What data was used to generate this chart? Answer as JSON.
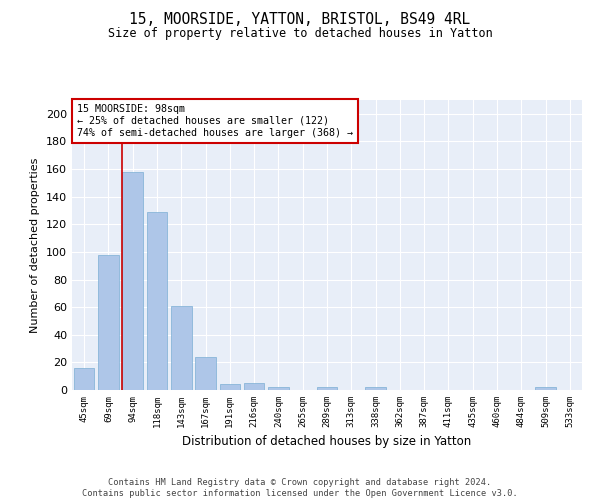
{
  "title1": "15, MOORSIDE, YATTON, BRISTOL, BS49 4RL",
  "title2": "Size of property relative to detached houses in Yatton",
  "xlabel": "Distribution of detached houses by size in Yatton",
  "ylabel": "Number of detached properties",
  "categories": [
    "45sqm",
    "69sqm",
    "94sqm",
    "118sqm",
    "143sqm",
    "167sqm",
    "191sqm",
    "216sqm",
    "240sqm",
    "265sqm",
    "289sqm",
    "313sqm",
    "338sqm",
    "362sqm",
    "387sqm",
    "411sqm",
    "435sqm",
    "460sqm",
    "484sqm",
    "509sqm",
    "533sqm"
  ],
  "values": [
    16,
    98,
    158,
    129,
    61,
    24,
    4,
    5,
    2,
    0,
    2,
    0,
    2,
    0,
    0,
    0,
    0,
    0,
    0,
    2,
    0
  ],
  "bar_color": "#aec6e8",
  "bar_edge_color": "#7bafd4",
  "vline_color": "#cc0000",
  "annotation_title": "15 MOORSIDE: 98sqm",
  "annotation_line1": "← 25% of detached houses are smaller (122)",
  "annotation_line2": "74% of semi-detached houses are larger (368) →",
  "annotation_box_color": "#cc0000",
  "ylim": [
    0,
    210
  ],
  "yticks": [
    0,
    20,
    40,
    60,
    80,
    100,
    120,
    140,
    160,
    180,
    200
  ],
  "footer1": "Contains HM Land Registry data © Crown copyright and database right 2024.",
  "footer2": "Contains public sector information licensed under the Open Government Licence v3.0.",
  "bg_color": "#e8eef8"
}
